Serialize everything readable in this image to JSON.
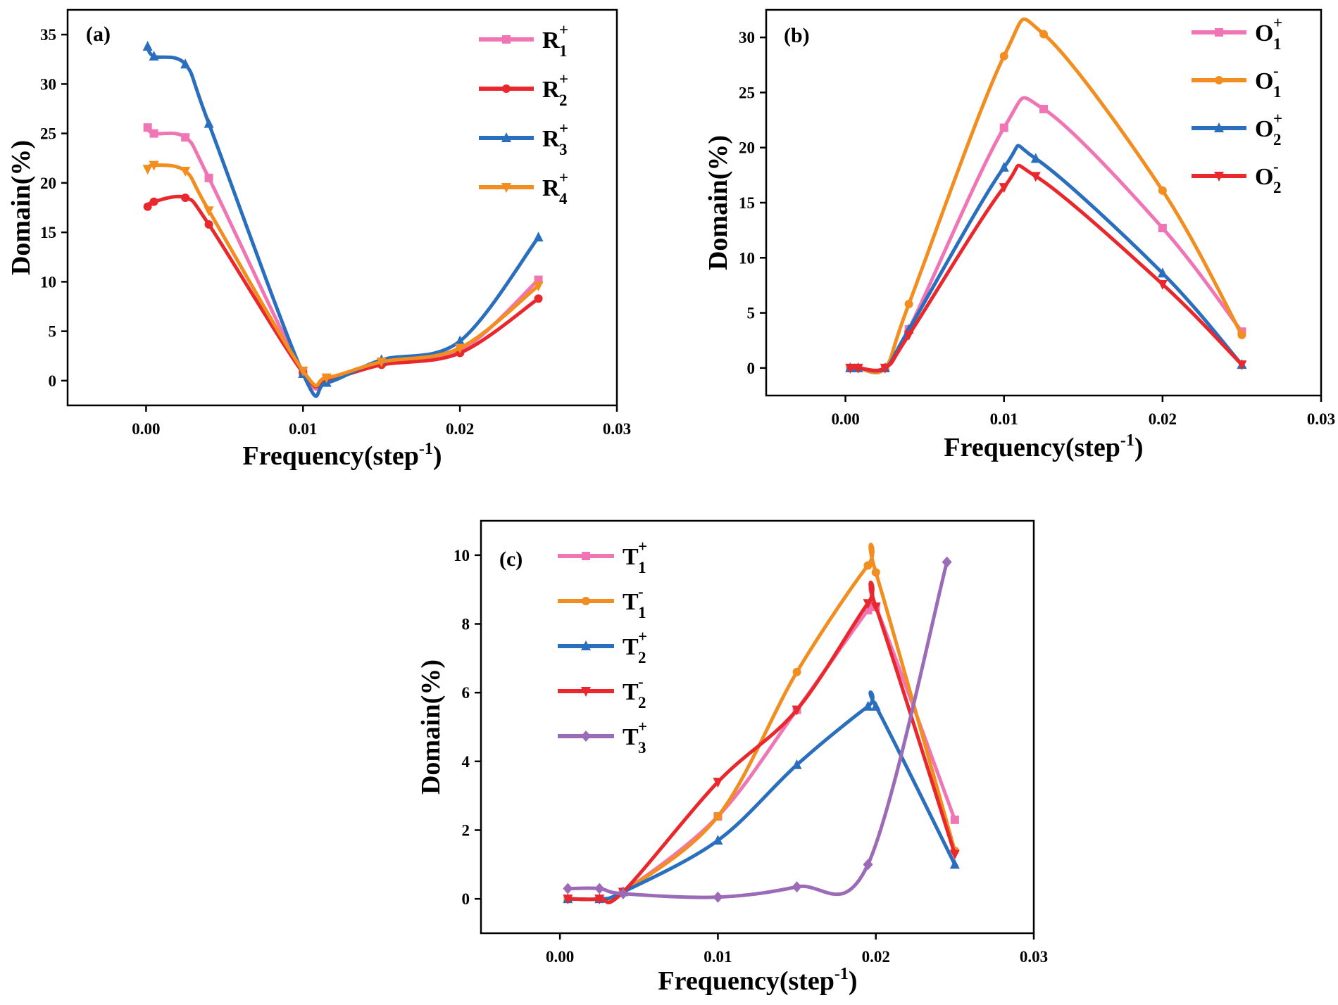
{
  "figure_title": "",
  "chart_data": [
    {
      "panel": "(a)",
      "type": "line",
      "xlabel": "Frequency(step-1)",
      "xlabel_base": "Frequency(step",
      "xlabel_sup": "-1",
      "xlabel_end": ")",
      "ylabel": "Domain(%)",
      "xlim": [
        -0.005,
        0.03
      ],
      "ylim": [
        -2.5,
        37.5
      ],
      "xticks": [
        "0.00",
        "0.01",
        "0.02",
        "0.03"
      ],
      "xtick_values": [
        0,
        0.01,
        0.02,
        0.03
      ],
      "yticks": [
        "0",
        "5",
        "10",
        "15",
        "20",
        "25",
        "30",
        "35"
      ],
      "ytick_values": [
        0,
        5,
        10,
        15,
        20,
        25,
        30,
        35
      ],
      "legend_position": "top-right",
      "series": [
        {
          "name": "R1+",
          "base": "R",
          "sub": "1",
          "sup": "+",
          "color": "#f075b5",
          "marker": "square",
          "x": [
            0.0001,
            0.0005,
            0.0025,
            0.004,
            0.01,
            0.0115,
            0.015,
            0.02,
            0.025
          ],
          "y": [
            25.6,
            25.0,
            24.6,
            20.5,
            0.9,
            0.2,
            1.8,
            3.0,
            10.2
          ]
        },
        {
          "name": "R2+",
          "base": "R",
          "sub": "2",
          "sup": "+",
          "color": "#e8282c",
          "marker": "circle",
          "x": [
            0.0001,
            0.0005,
            0.0025,
            0.004,
            0.01,
            0.0115,
            0.015,
            0.02,
            0.025
          ],
          "y": [
            17.6,
            18.1,
            18.5,
            15.8,
            0.8,
            0.1,
            1.6,
            2.8,
            8.3
          ]
        },
        {
          "name": "R3+",
          "base": "R",
          "sub": "3",
          "sup": "+",
          "color": "#2a6fbd",
          "marker": "triangle-up",
          "x": [
            0.0001,
            0.0005,
            0.0025,
            0.004,
            0.01,
            0.0115,
            0.015,
            0.02,
            0.025
          ],
          "y": [
            33.8,
            32.8,
            32.0,
            26.0,
            0.7,
            -0.2,
            2.1,
            4.0,
            14.5
          ]
        },
        {
          "name": "R4+",
          "base": "R",
          "sub": "4",
          "sup": "+",
          "color": "#f28d1f",
          "marker": "triangle-down",
          "x": [
            0.0001,
            0.0005,
            0.0025,
            0.004,
            0.01,
            0.0115,
            0.015,
            0.02,
            0.025
          ],
          "y": [
            21.4,
            21.8,
            21.2,
            17.2,
            1.0,
            0.3,
            1.9,
            3.3,
            9.6
          ]
        }
      ]
    },
    {
      "panel": "(b)",
      "type": "line",
      "xlabel": "Frequency(step-1)",
      "xlabel_base": "Frequency(step",
      "xlabel_sup": "-1",
      "xlabel_end": ")",
      "ylabel": "Domain(%)",
      "xlim": [
        -0.005,
        0.03
      ],
      "ylim": [
        -2.5,
        32.5
      ],
      "xticks": [
        "0.00",
        "0.01",
        "0.02",
        "0.03"
      ],
      "xtick_values": [
        0,
        0.01,
        0.02,
        0.03
      ],
      "yticks": [
        "0",
        "5",
        "10",
        "15",
        "20",
        "25",
        "30"
      ],
      "ytick_values": [
        0,
        5,
        10,
        15,
        20,
        25,
        30
      ],
      "legend_position": "top-right",
      "series": [
        {
          "name": "O1+",
          "base": "O",
          "sub": "1",
          "sup": "+",
          "color": "#f075b5",
          "marker": "square",
          "x": [
            0.0003,
            0.0008,
            0.0025,
            0.004,
            0.01,
            0.0125,
            0.02,
            0.025
          ],
          "y": [
            0.0,
            0.0,
            0.0,
            3.5,
            21.8,
            23.5,
            12.7,
            3.3
          ]
        },
        {
          "name": "O1-",
          "base": "O",
          "sub": "1",
          "sup": "-",
          "color": "#f28d1f",
          "marker": "circle",
          "x": [
            0.0003,
            0.0008,
            0.0025,
            0.004,
            0.01,
            0.0125,
            0.02,
            0.025
          ],
          "y": [
            0.0,
            0.0,
            0.0,
            5.8,
            28.3,
            30.3,
            16.1,
            3.0
          ]
        },
        {
          "name": "O2+",
          "base": "O",
          "sub": "2",
          "sup": "+",
          "color": "#2a6fbd",
          "marker": "triangle-up",
          "x": [
            0.0003,
            0.0008,
            0.0025,
            0.004,
            0.01,
            0.012,
            0.02,
            0.025
          ],
          "y": [
            0.0,
            0.0,
            0.0,
            3.5,
            18.2,
            19.0,
            8.6,
            0.3
          ]
        },
        {
          "name": "O2-",
          "base": "O",
          "sub": "2",
          "sup": "-",
          "color": "#e8282c",
          "marker": "triangle-down",
          "x": [
            0.0003,
            0.0008,
            0.0025,
            0.004,
            0.01,
            0.012,
            0.02,
            0.025
          ],
          "y": [
            0.0,
            0.0,
            0.0,
            3.0,
            16.4,
            17.4,
            7.6,
            0.3
          ]
        }
      ]
    },
    {
      "panel": "(c)",
      "type": "line",
      "xlabel": "Frequency(step-1)",
      "xlabel_base": "Frequency(step",
      "xlabel_sup": "-1",
      "xlabel_end": ")",
      "ylabel": "Domain(%)",
      "xlim": [
        -0.005,
        0.03
      ],
      "ylim": [
        -1,
        11
      ],
      "xticks": [
        "0.00",
        "0.01",
        "0.02",
        "0.03"
      ],
      "xtick_values": [
        0,
        0.01,
        0.02,
        0.03
      ],
      "yticks": [
        "0",
        "2",
        "4",
        "6",
        "8",
        "10"
      ],
      "ytick_values": [
        0,
        2,
        4,
        6,
        8,
        10
      ],
      "legend_position": "top-left",
      "series": [
        {
          "name": "T1+",
          "base": "T",
          "sub": "1",
          "sup": "+",
          "color": "#f075b5",
          "marker": "square",
          "x": [
            0.0005,
            0.0025,
            0.004,
            0.01,
            0.015,
            0.0195,
            0.02,
            0.025
          ],
          "y": [
            0.0,
            0.0,
            0.2,
            2.4,
            5.5,
            8.4,
            8.5,
            2.3
          ]
        },
        {
          "name": "T1-",
          "base": "T",
          "sub": "1",
          "sup": "-",
          "color": "#f28d1f",
          "marker": "circle",
          "x": [
            0.0005,
            0.0025,
            0.004,
            0.01,
            0.015,
            0.0195,
            0.02,
            0.025
          ],
          "y": [
            0.0,
            0.0,
            0.2,
            2.4,
            6.6,
            9.7,
            9.5,
            1.4
          ]
        },
        {
          "name": "T2+",
          "base": "T",
          "sub": "2",
          "sup": "+",
          "color": "#2a6fbd",
          "marker": "triangle-up",
          "x": [
            0.0005,
            0.0025,
            0.004,
            0.01,
            0.015,
            0.0195,
            0.02,
            0.025
          ],
          "y": [
            0.0,
            0.0,
            0.2,
            1.7,
            3.9,
            5.6,
            5.6,
            1.0
          ]
        },
        {
          "name": "T2-",
          "base": "T",
          "sub": "2",
          "sup": "-",
          "color": "#e8282c",
          "marker": "triangle-down",
          "x": [
            0.0005,
            0.0025,
            0.004,
            0.01,
            0.015,
            0.0195,
            0.02,
            0.025
          ],
          "y": [
            0.0,
            0.0,
            0.2,
            3.4,
            5.5,
            8.6,
            8.5,
            1.3
          ]
        },
        {
          "name": "T3+",
          "base": "T",
          "sub": "3",
          "sup": "+",
          "color": "#9c6bb8",
          "marker": "diamond",
          "x": [
            0.0005,
            0.0025,
            0.004,
            0.01,
            0.015,
            0.0195,
            0.0245
          ],
          "y": [
            0.3,
            0.3,
            0.15,
            0.05,
            0.35,
            1.0,
            9.8
          ]
        }
      ]
    }
  ]
}
